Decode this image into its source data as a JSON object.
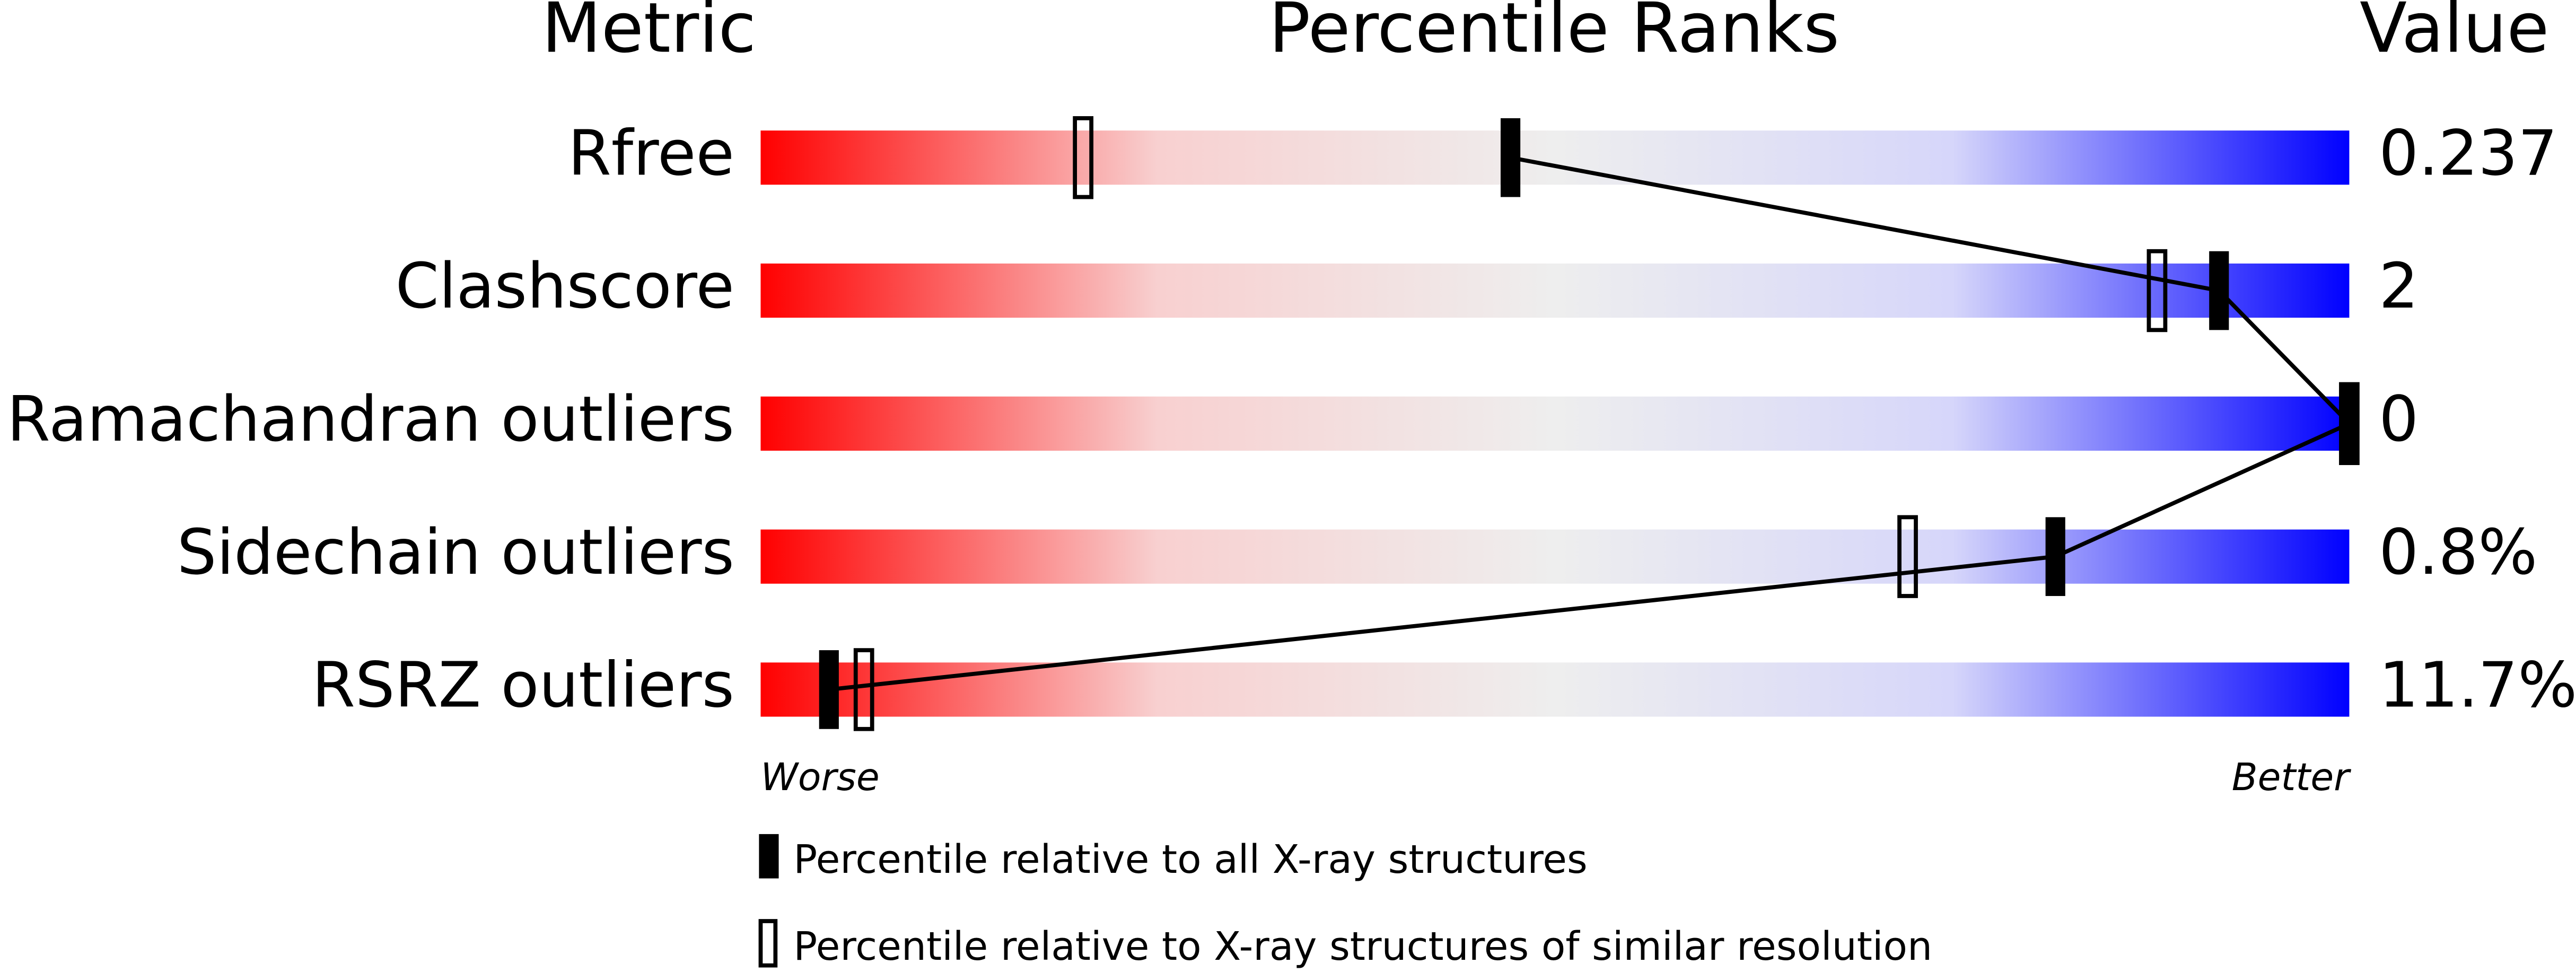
{
  "chart_data": {
    "type": "percentile-slider",
    "title": "Percentile Ranks",
    "metric_header": "Metric",
    "value_header": "Value",
    "categories": [
      "Rfree",
      "Clashscore",
      "Ramachandran outliers",
      "Sidechain outliers",
      "RSRZ outliers"
    ],
    "metric_values": [
      "0.237",
      "2",
      "0",
      "0.8%",
      "11.7%"
    ],
    "xlim": [
      0,
      100
    ],
    "left_label": "Worse",
    "right_label": "Better",
    "series": [
      {
        "name": "Percentile relative to all X-ray structures",
        "color": "#000000",
        "filled": true,
        "values": [
          47.2,
          91.8,
          100,
          81.5,
          4.3
        ]
      },
      {
        "name": "Percentile relative to X-ray structures of similar resolution",
        "color": "#000000",
        "filled": false,
        "values": [
          20.3,
          87.9,
          100,
          72.2,
          6.5
        ]
      }
    ],
    "gradient": [
      "#ff0000",
      "#f8d0d0",
      "#eeeeee",
      "#d6d6fa",
      "#0000ff"
    ]
  }
}
